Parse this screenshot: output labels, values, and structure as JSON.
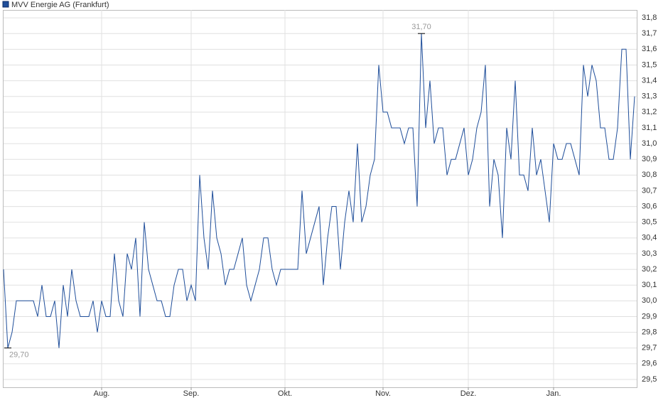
{
  "chart_data": {
    "type": "line",
    "series": [
      {
        "name": "MVV Energie AG (Frankfurt)",
        "color": "#1f4e9a",
        "values": [
          30.2,
          29.7,
          29.8,
          30.0,
          30.0,
          30.0,
          30.0,
          30.0,
          29.9,
          30.1,
          29.9,
          29.9,
          30.0,
          29.7,
          30.1,
          29.9,
          30.2,
          30.0,
          29.9,
          29.9,
          29.9,
          30.0,
          29.8,
          30.0,
          29.9,
          29.9,
          30.3,
          30.0,
          29.9,
          30.3,
          30.2,
          30.4,
          29.9,
          30.5,
          30.2,
          30.1,
          30.0,
          30.0,
          29.9,
          29.9,
          30.1,
          30.2,
          30.2,
          30.0,
          30.1,
          30.0,
          30.8,
          30.4,
          30.2,
          30.7,
          30.4,
          30.3,
          30.1,
          30.2,
          30.2,
          30.3,
          30.4,
          30.1,
          30.0,
          30.1,
          30.2,
          30.4,
          30.4,
          30.2,
          30.1,
          30.2,
          30.2,
          30.2,
          30.2,
          30.2,
          30.7,
          30.3,
          30.4,
          30.5,
          30.6,
          30.1,
          30.4,
          30.6,
          30.6,
          30.2,
          30.5,
          30.7,
          30.5,
          31.0,
          30.5,
          30.6,
          30.8,
          30.9,
          31.5,
          31.2,
          31.2,
          31.1,
          31.1,
          31.1,
          31.0,
          31.1,
          31.1,
          30.6,
          31.7,
          31.1,
          31.4,
          31.0,
          31.1,
          31.1,
          30.8,
          30.9,
          30.9,
          31.0,
          31.1,
          30.8,
          30.9,
          31.1,
          31.2,
          31.5,
          30.6,
          30.9,
          30.8,
          30.4,
          31.1,
          30.9,
          31.4,
          30.8,
          30.8,
          30.7,
          31.1,
          30.8,
          30.9,
          30.7,
          30.5,
          31.0,
          30.9,
          30.9,
          31.0,
          31.0,
          30.9,
          30.8,
          31.5,
          31.3,
          31.5,
          31.4,
          31.1,
          31.1,
          30.9,
          30.9,
          31.1,
          31.6,
          31.6,
          30.9,
          31.3
        ],
        "value_labels": [
          null,
          "29,70",
          null,
          null,
          null,
          null,
          null,
          null,
          null,
          null,
          null,
          null,
          null,
          null,
          null,
          null,
          null,
          null,
          null,
          null,
          null,
          null,
          null,
          null,
          null,
          null,
          null,
          null,
          null,
          null,
          null,
          null,
          null,
          null,
          null,
          null,
          null,
          null,
          null,
          null,
          null,
          null,
          null,
          null,
          null,
          null,
          null,
          null,
          null,
          null,
          null,
          null,
          null,
          null,
          null,
          null,
          null,
          null,
          null,
          null,
          null,
          null,
          null,
          null,
          null,
          null,
          null,
          null,
          null,
          null,
          null,
          null,
          null,
          null,
          null,
          null,
          null,
          null,
          null,
          null,
          null,
          null,
          null,
          null,
          null,
          null,
          null,
          null,
          null,
          null,
          null,
          null,
          null,
          null,
          null,
          null,
          null,
          null,
          "31,70",
          null,
          null,
          null,
          null,
          null,
          null,
          null,
          null,
          null,
          null,
          null,
          null,
          null,
          null,
          null,
          null,
          null,
          null,
          null,
          null,
          null,
          null,
          null,
          null,
          null,
          null,
          null,
          null,
          null,
          null,
          null,
          null,
          null,
          null,
          null,
          null,
          null,
          null,
          null,
          null,
          null,
          null,
          null,
          null,
          null,
          null,
          null,
          null,
          null,
          null
        ]
      }
    ],
    "categories": [
      null,
      null,
      null,
      null,
      null,
      null,
      null,
      null,
      null,
      null,
      null,
      null,
      null,
      null,
      null,
      null,
      null,
      null,
      null,
      null,
      null,
      null,
      null,
      "Aug.",
      null,
      null,
      null,
      null,
      null,
      null,
      null,
      null,
      null,
      null,
      null,
      null,
      null,
      null,
      null,
      null,
      null,
      null,
      null,
      null,
      "Sep.",
      null,
      null,
      null,
      null,
      null,
      null,
      null,
      null,
      null,
      null,
      null,
      null,
      null,
      null,
      null,
      null,
      null,
      null,
      null,
      null,
      null,
      "Okt.",
      null,
      null,
      null,
      null,
      null,
      null,
      null,
      null,
      null,
      null,
      null,
      null,
      null,
      null,
      null,
      null,
      null,
      null,
      null,
      null,
      null,
      null,
      "Nov.",
      null,
      null,
      null,
      null,
      null,
      null,
      null,
      null,
      null,
      null,
      null,
      null,
      null,
      null,
      null,
      null,
      null,
      null,
      null,
      "Dez.",
      null,
      null,
      null,
      null,
      null,
      null,
      null,
      null,
      null,
      null,
      null,
      null,
      null,
      null,
      null,
      null,
      null,
      null,
      null,
      "Jan.",
      null,
      null,
      null,
      null,
      null,
      null,
      null,
      null,
      null,
      null,
      null,
      null,
      null,
      null,
      null,
      null,
      null,
      null,
      null
    ],
    "ylim": [
      29.45,
      31.85
    ],
    "yticks": [
      {
        "value": 29.5,
        "label": "29,5"
      },
      {
        "value": 29.6,
        "label": "29,6"
      },
      {
        "value": 29.7,
        "label": "29,7"
      },
      {
        "value": 29.8,
        "label": "29,8"
      },
      {
        "value": 29.9,
        "label": "29,9"
      },
      {
        "value": 30.0,
        "label": "30,0"
      },
      {
        "value": 30.1,
        "label": "30,1"
      },
      {
        "value": 30.2,
        "label": "30,2"
      },
      {
        "value": 30.3,
        "label": "30,3"
      },
      {
        "value": 30.4,
        "label": "30,4"
      },
      {
        "value": 30.5,
        "label": "30,5"
      },
      {
        "value": 30.6,
        "label": "30,6"
      },
      {
        "value": 30.7,
        "label": "30,7"
      },
      {
        "value": 30.8,
        "label": "30,8"
      },
      {
        "value": 30.9,
        "label": "30,9"
      },
      {
        "value": 31.0,
        "label": "31,0"
      },
      {
        "value": 31.1,
        "label": "31,1"
      },
      {
        "value": 31.2,
        "label": "31,2"
      },
      {
        "value": 31.3,
        "label": "31,3"
      },
      {
        "value": 31.4,
        "label": "31,4"
      },
      {
        "value": 31.5,
        "label": "31,5"
      },
      {
        "value": 31.6,
        "label": "31,6"
      },
      {
        "value": 31.7,
        "label": "31,7"
      },
      {
        "value": 31.8,
        "label": "31,8"
      }
    ],
    "grid": true
  }
}
